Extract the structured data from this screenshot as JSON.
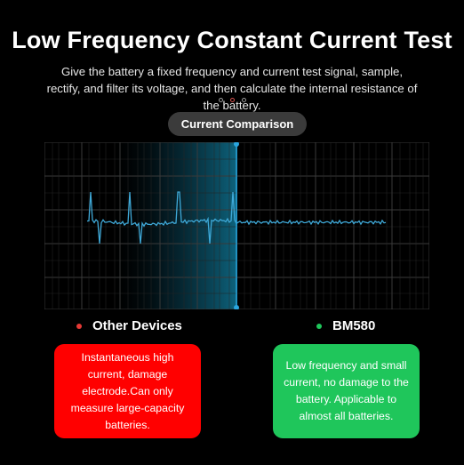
{
  "header": {
    "title": "Low Frequency Constant Current Test",
    "subtitle": "Give the battery a fixed frequency and current test signal, sample, rectify, and filter its voltage, and then calculate the internal resistance of the battery."
  },
  "carousel": {
    "dot_count": 3,
    "active_index": 1
  },
  "comparison_label": "Current Comparison",
  "legend": {
    "left": {
      "label": "Other Devices",
      "color": "#e53935"
    },
    "right": {
      "label": "BM580",
      "color": "#1fc65b"
    }
  },
  "cards": {
    "left": {
      "text": "Instantaneous high current, damage electrode.Can only measure large-capacity batteries.",
      "color": "#ff0000"
    },
    "right": {
      "text": "Low frequency and small current, no damage to the battery. Applicable to almost all batteries.",
      "color": "#1fc65b"
    }
  },
  "colors": {
    "signal": "#3fa9d8",
    "grid": "#3a3a3a",
    "divider": "#2aa6df"
  }
}
